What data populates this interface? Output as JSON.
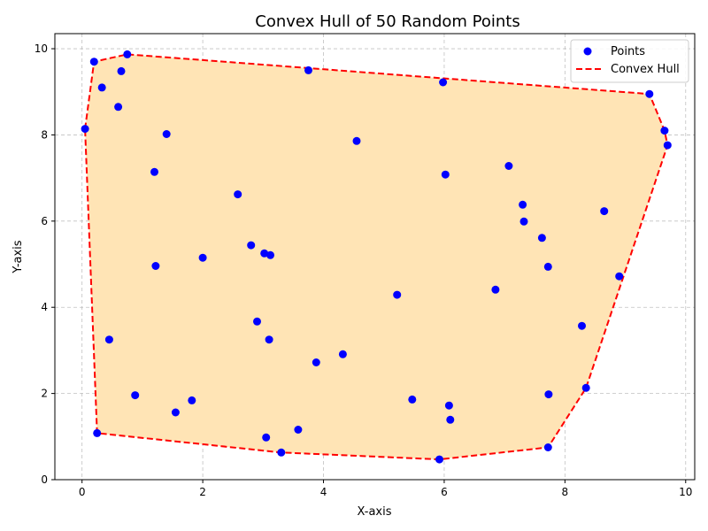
{
  "chart_data": {
    "type": "scatter",
    "title": "Convex Hull of 50 Random Points",
    "xlabel": "X-axis",
    "ylabel": "Y-axis",
    "xlim": [
      -0.45,
      10.15
    ],
    "ylim": [
      0,
      10.35
    ],
    "xticks": [
      0,
      2,
      4,
      6,
      8,
      10
    ],
    "yticks": [
      0,
      2,
      4,
      6,
      8,
      10
    ],
    "grid": true,
    "legend": {
      "placement": "top-right",
      "entries": [
        "Points",
        "Convex Hull"
      ]
    },
    "colors": {
      "points": "#0000ff",
      "hull_line": "#ff0000",
      "hull_fill": "#ffe4b5"
    },
    "series": [
      {
        "name": "Points",
        "points": [
          [
            0.05,
            8.14
          ],
          [
            0.2,
            9.7
          ],
          [
            0.25,
            1.08
          ],
          [
            0.33,
            9.1
          ],
          [
            0.45,
            3.25
          ],
          [
            0.6,
            8.65
          ],
          [
            0.65,
            9.48
          ],
          [
            0.75,
            9.87
          ],
          [
            0.88,
            1.96
          ],
          [
            1.2,
            7.14
          ],
          [
            1.22,
            4.96
          ],
          [
            1.4,
            8.02
          ],
          [
            1.55,
            1.56
          ],
          [
            1.82,
            1.84
          ],
          [
            2.0,
            5.15
          ],
          [
            2.58,
            6.62
          ],
          [
            2.8,
            5.44
          ],
          [
            2.9,
            3.67
          ],
          [
            3.02,
            5.25
          ],
          [
            3.05,
            0.98
          ],
          [
            3.1,
            3.25
          ],
          [
            3.12,
            5.21
          ],
          [
            3.3,
            0.63
          ],
          [
            3.58,
            1.16
          ],
          [
            3.75,
            9.5
          ],
          [
            3.88,
            2.72
          ],
          [
            4.32,
            2.91
          ],
          [
            4.55,
            7.86
          ],
          [
            5.22,
            4.29
          ],
          [
            5.47,
            1.86
          ],
          [
            5.92,
            0.47
          ],
          [
            5.98,
            9.22
          ],
          [
            6.02,
            7.08
          ],
          [
            6.08,
            1.72
          ],
          [
            6.1,
            1.39
          ],
          [
            6.85,
            4.41
          ],
          [
            7.07,
            7.28
          ],
          [
            7.3,
            6.38
          ],
          [
            7.32,
            5.99
          ],
          [
            7.62,
            5.61
          ],
          [
            7.72,
            0.75
          ],
          [
            7.72,
            4.94
          ],
          [
            7.73,
            1.98
          ],
          [
            8.28,
            3.57
          ],
          [
            8.35,
            2.13
          ],
          [
            8.65,
            6.23
          ],
          [
            8.9,
            4.72
          ],
          [
            9.4,
            8.95
          ],
          [
            9.65,
            8.1
          ],
          [
            9.7,
            7.76
          ]
        ]
      },
      {
        "name": "Convex Hull",
        "points": [
          [
            0.05,
            8.14
          ],
          [
            0.2,
            9.7
          ],
          [
            0.75,
            9.87
          ],
          [
            9.4,
            8.95
          ],
          [
            9.65,
            8.1
          ],
          [
            9.7,
            7.76
          ],
          [
            8.35,
            2.13
          ],
          [
            7.72,
            0.75
          ],
          [
            5.92,
            0.47
          ],
          [
            3.3,
            0.63
          ],
          [
            0.25,
            1.08
          ],
          [
            0.05,
            8.14
          ]
        ]
      }
    ]
  }
}
